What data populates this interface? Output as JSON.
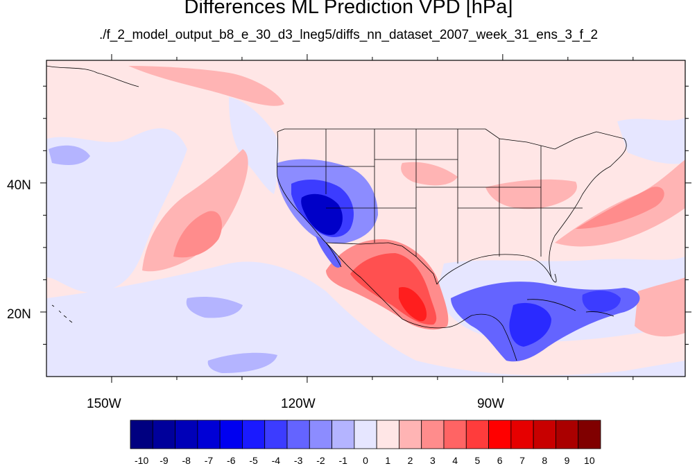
{
  "title": "Differences ML Prediction VPD [hPa]",
  "subtitle": "./f_2_model_output_b8_e_30_d3_lneg5/diffs_nn_dataset_2007_week_31_ens_3_f_2",
  "map": {
    "projection": "cylindrical equidistant",
    "lon_range": [
      -160,
      -62
    ],
    "lat_range": [
      10,
      59
    ],
    "lon_ticks": [
      "150W",
      "120W",
      "90W"
    ],
    "lat_ticks": [
      "40N",
      "20N"
    ]
  },
  "colorbar": {
    "labels": [
      "-10",
      "-9",
      "-8",
      "-7",
      "-6",
      "-5",
      "-4",
      "-3",
      "-2",
      "-1",
      "0",
      "1",
      "2",
      "3",
      "4",
      "5",
      "6",
      "7",
      "8",
      "9",
      "10"
    ],
    "colors": [
      "#000080",
      "#00009b",
      "#0000b8",
      "#0000d6",
      "#0000f0",
      "#1a1aff",
      "#3c3cff",
      "#6464ff",
      "#8c8cff",
      "#b4b4ff",
      "#e6e6ff",
      "#ffe6e6",
      "#ffb4b4",
      "#ff8c8c",
      "#ff6464",
      "#ff3c3c",
      "#ff0000",
      "#e60000",
      "#c80000",
      "#aa0000",
      "#800000"
    ]
  }
}
